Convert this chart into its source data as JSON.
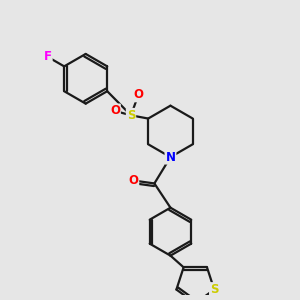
{
  "bg_color": "#e6e6e6",
  "bond_color": "#1a1a1a",
  "bond_width": 1.6,
  "atom_colors": {
    "F": "#ff00ff",
    "S_sulfonyl": "#cccc00",
    "O": "#ff0000",
    "N": "#0000ff",
    "S_thio": "#cccc00"
  },
  "font_size": 8.5
}
